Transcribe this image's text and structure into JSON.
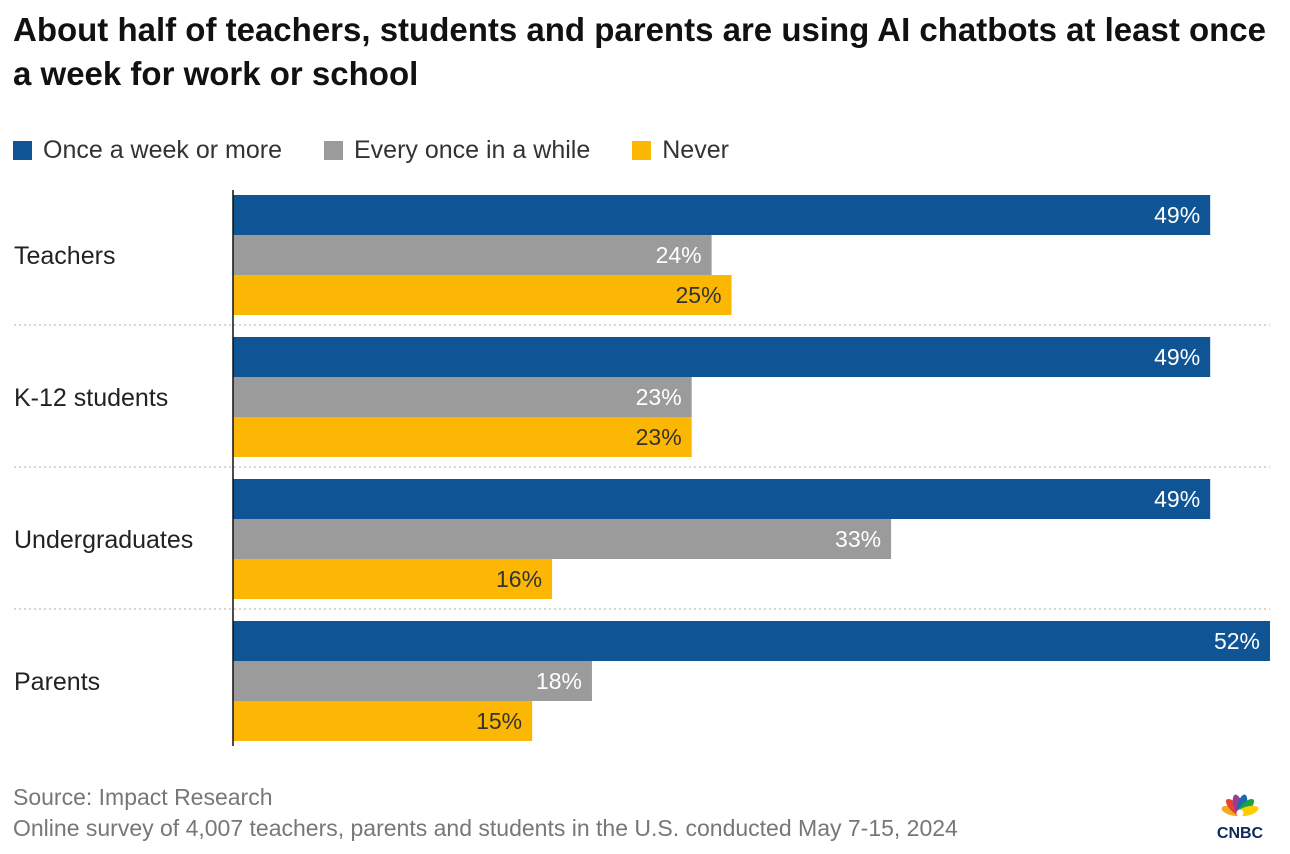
{
  "title": "About half of teachers, students and parents are using AI chatbots at least once a week for work or school",
  "source": "Source: Impact Research",
  "note": "Online survey of 4,007 teachers, parents and students in the U.S. conducted May 7-15, 2024",
  "logo_text": "CNBC",
  "colors": {
    "weekly": "#0f5494",
    "sometimes": "#9b9b9b",
    "never": "#fbb703"
  },
  "legend": [
    {
      "label": "Once a week or more",
      "color": "#0f5494"
    },
    {
      "label": "Every once in a while",
      "color": "#9b9b9b"
    },
    {
      "label": "Never",
      "color": "#fbb703"
    }
  ],
  "chart_data": {
    "type": "bar",
    "orientation": "horizontal",
    "categories": [
      "Teachers",
      "K-12 students",
      "Undergraduates",
      "Parents"
    ],
    "series": [
      {
        "name": "Once a week or more",
        "color": "#0f5494",
        "label_color": "#ffffff",
        "values": [
          49,
          49,
          49,
          52
        ]
      },
      {
        "name": "Every once in a while",
        "color": "#9b9b9b",
        "label_color": "#ffffff",
        "values": [
          24,
          23,
          33,
          18
        ]
      },
      {
        "name": "Never",
        "color": "#fbb703",
        "label_color": "#333333",
        "values": [
          25,
          23,
          16,
          15
        ]
      }
    ],
    "value_suffix": "%",
    "xlim": [
      0,
      52
    ],
    "grid": false,
    "legend_position": "top-left"
  }
}
